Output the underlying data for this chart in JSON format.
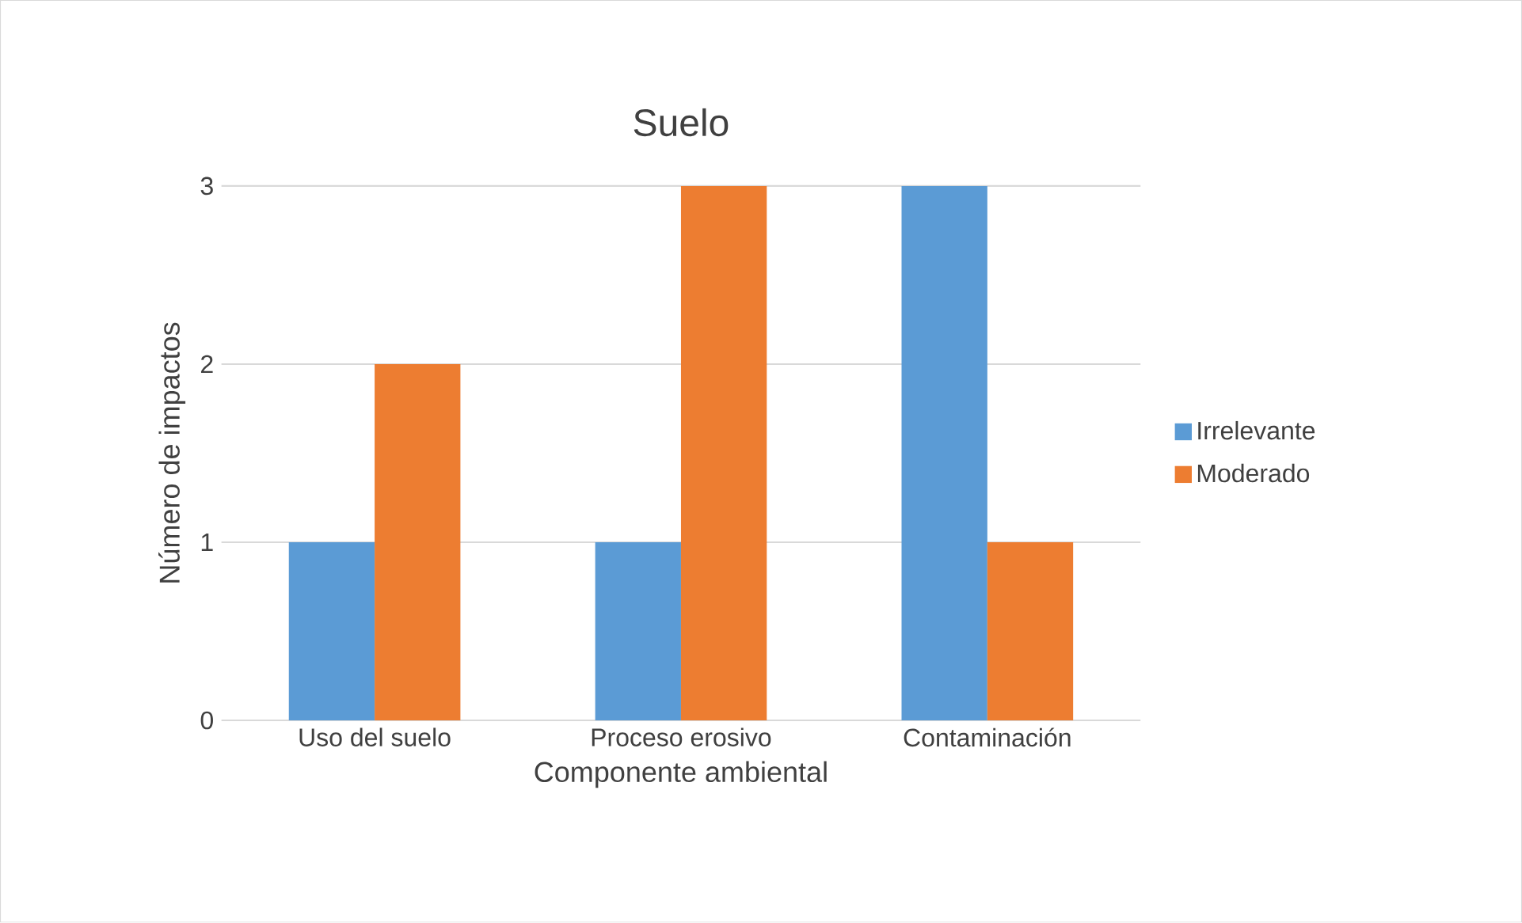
{
  "chart_data": {
    "type": "bar",
    "title": "Suelo",
    "xlabel": "Componente ambiental",
    "ylabel": "Número de impactos",
    "categories": [
      "Uso del suelo",
      "Proceso erosivo",
      "Contaminación"
    ],
    "series": [
      {
        "name": "Irrelevante",
        "color": "#5b9bd5",
        "values": [
          1,
          1,
          3
        ]
      },
      {
        "name": "Moderado",
        "color": "#ed7d31",
        "values": [
          2,
          3,
          1
        ]
      }
    ],
    "ylim": [
      0,
      3
    ],
    "yticks": [
      0,
      1,
      2,
      3
    ],
    "grid": "y",
    "legend": "right"
  }
}
